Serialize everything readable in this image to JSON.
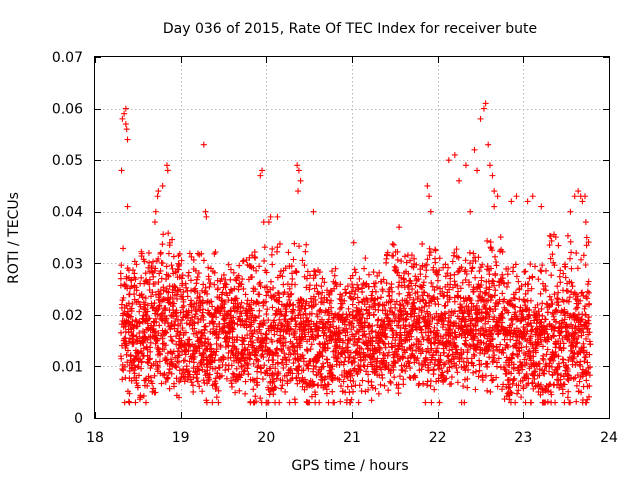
{
  "chart_data": {
    "type": "scatter",
    "title": "Day 036 of 2015, Rate Of TEC Index for receiver bute",
    "xlabel": "GPS time / hours",
    "ylabel": "ROTI / TECUs",
    "xlim": [
      18,
      24
    ],
    "ylim": [
      0,
      0.07
    ],
    "xticks": [
      "18",
      "19",
      "20",
      "21",
      "22",
      "23",
      "24"
    ],
    "yticks": [
      "0",
      "0.01",
      "0.02",
      "0.03",
      "0.04",
      "0.05",
      "0.06",
      "0.07"
    ],
    "grid": true,
    "marker": "plus",
    "color": "#ff0000",
    "series": [
      {
        "name": "ROTI",
        "x": [
          18.32,
          18.34,
          18.36,
          18.36,
          18.37,
          18.38,
          18.31,
          18.38,
          18.84,
          18.85,
          18.79,
          18.74,
          18.73,
          18.71,
          18.7,
          19.27,
          19.29,
          19.3,
          19.93,
          19.95,
          19.97,
          20.03,
          20.05,
          20.13,
          20.36,
          20.38,
          20.4,
          20.37,
          20.55,
          21.02,
          21.55,
          21.88,
          21.9,
          21.92,
          22.13,
          22.2,
          22.25,
          22.33,
          22.38,
          22.43,
          22.46,
          22.5,
          22.54,
          22.56,
          22.59,
          22.61,
          22.64,
          22.66,
          22.7,
          22.66,
          22.86,
          22.92,
          23.05,
          23.11,
          23.21,
          23.55,
          23.6,
          23.64,
          23.67,
          23.69,
          23.72,
          23.73,
          23.74,
          18.53,
          18.98,
          23.52,
          20.97,
          22.83
        ],
        "y": [
          0.058,
          0.059,
          0.06,
          0.057,
          0.056,
          0.054,
          0.048,
          0.041,
          0.049,
          0.048,
          0.045,
          0.044,
          0.043,
          0.04,
          0.038,
          0.053,
          0.04,
          0.039,
          0.047,
          0.048,
          0.038,
          0.038,
          0.039,
          0.039,
          0.049,
          0.048,
          0.046,
          0.044,
          0.04,
          0.034,
          0.037,
          0.045,
          0.043,
          0.04,
          0.05,
          0.051,
          0.046,
          0.049,
          0.04,
          0.052,
          0.048,
          0.058,
          0.06,
          0.061,
          0.053,
          0.049,
          0.047,
          0.044,
          0.043,
          0.041,
          0.042,
          0.043,
          0.042,
          0.043,
          0.041,
          0.04,
          0.043,
          0.044,
          0.043,
          0.042,
          0.043,
          0.038,
          0.035,
          0.004,
          0.004,
          0.004,
          0.005,
          0.005
        ]
      }
    ],
    "density": {
      "name": "ROTI bulk",
      "x_start": 18.3,
      "x_end": 23.78,
      "step_hours": 0.002,
      "segments": [
        {
          "x": [
            18.3,
            18.6
          ],
          "low": 0.007,
          "center": 0.016,
          "high": 0.033
        },
        {
          "x": [
            18.6,
            18.9
          ],
          "low": 0.006,
          "center": 0.018,
          "high": 0.036
        },
        {
          "x": [
            18.9,
            19.3
          ],
          "low": 0.007,
          "center": 0.016,
          "high": 0.032
        },
        {
          "x": [
            19.3,
            19.8
          ],
          "low": 0.007,
          "center": 0.016,
          "high": 0.031
        },
        {
          "x": [
            19.8,
            20.5
          ],
          "low": 0.006,
          "center": 0.015,
          "high": 0.034
        },
        {
          "x": [
            20.5,
            21.0
          ],
          "low": 0.006,
          "center": 0.015,
          "high": 0.029
        },
        {
          "x": [
            21.0,
            21.4
          ],
          "low": 0.007,
          "center": 0.016,
          "high": 0.029
        },
        {
          "x": [
            21.4,
            21.9
          ],
          "low": 0.006,
          "center": 0.017,
          "high": 0.034
        },
        {
          "x": [
            21.9,
            22.4
          ],
          "low": 0.007,
          "center": 0.017,
          "high": 0.033
        },
        {
          "x": [
            22.4,
            22.8
          ],
          "low": 0.007,
          "center": 0.019,
          "high": 0.036
        },
        {
          "x": [
            22.8,
            23.3
          ],
          "low": 0.005,
          "center": 0.014,
          "high": 0.03
        },
        {
          "x": [
            23.3,
            23.78
          ],
          "low": 0.006,
          "center": 0.015,
          "high": 0.036
        }
      ]
    }
  }
}
